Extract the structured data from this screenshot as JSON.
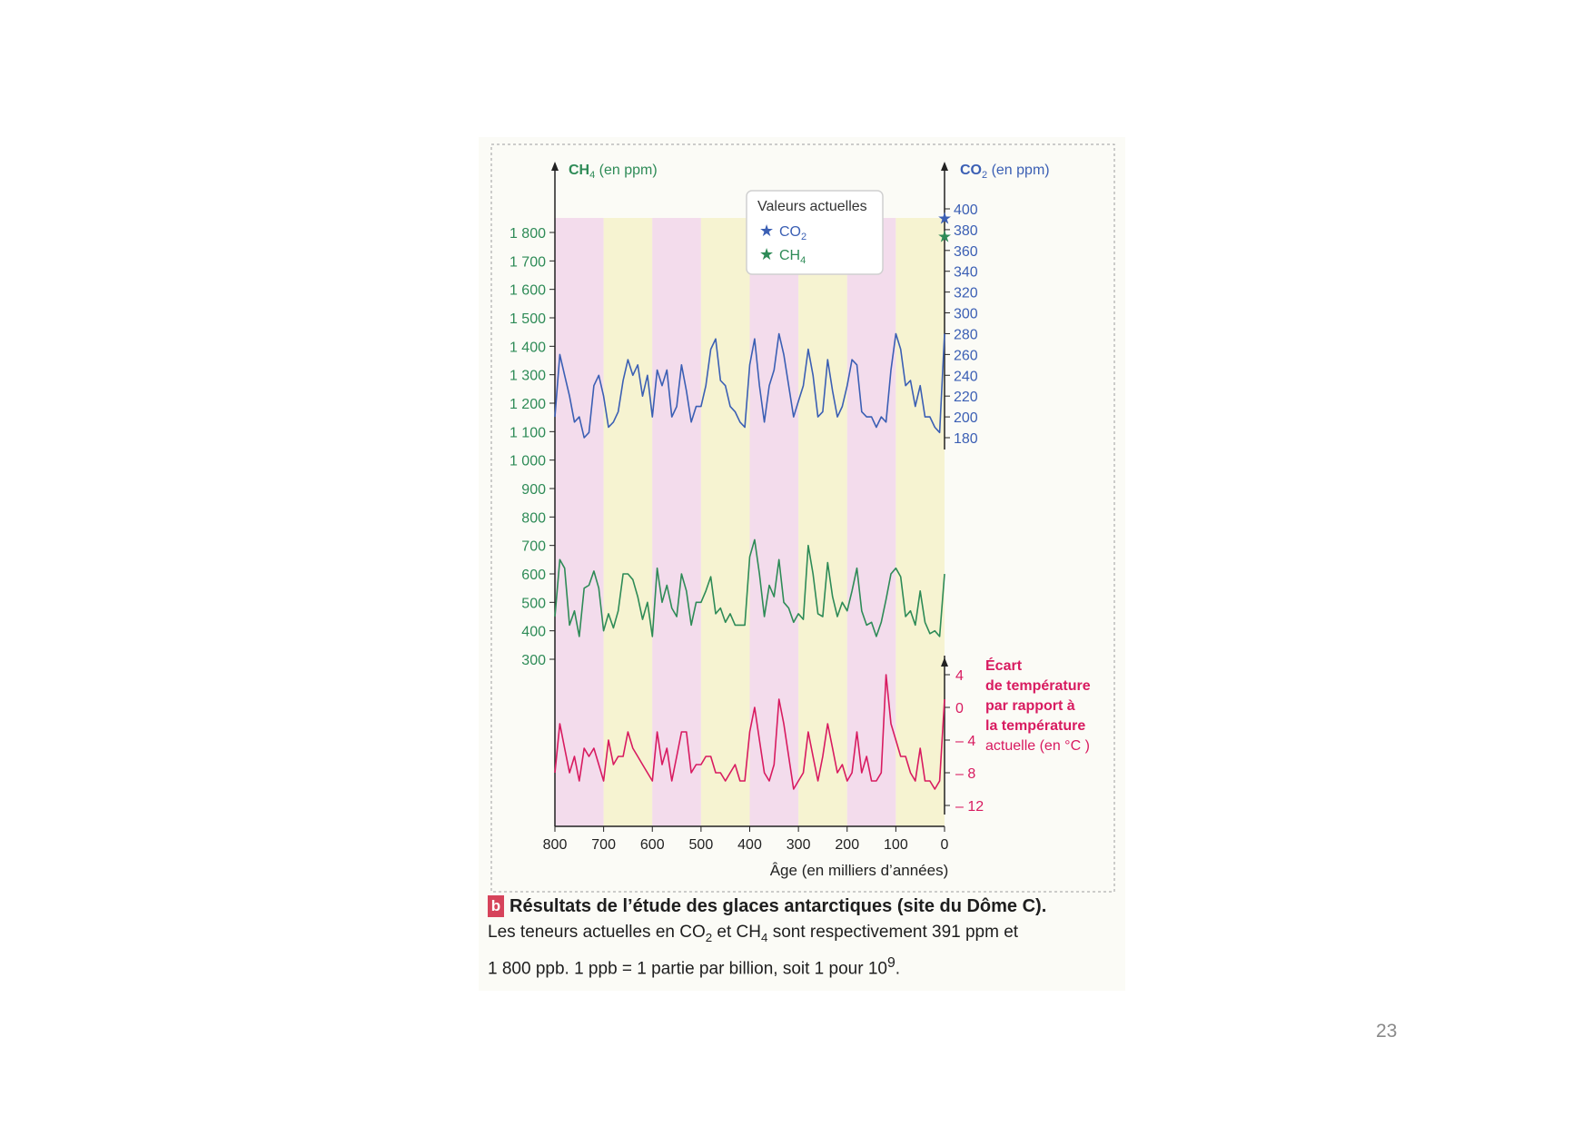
{
  "slide": {
    "page_number": "23"
  },
  "caption": {
    "badge": "b",
    "title": "Résultats de l’étude des glaces antarctiques (site du Dôme C).",
    "line1_a": "Les teneurs actuelles en CO",
    "line1_sub1": "2",
    "line1_b": " et CH",
    "line1_sub2": "4",
    "line1_c": " sont respectivement 391 ppm et",
    "line2_a": "1 800 ppb. 1 ppb = 1 partie par billion, soit 1 pour 10",
    "line2_sup": "9",
    "line2_b": "."
  },
  "colors": {
    "co2": "#3b5fb4",
    "ch4": "#2e8b57",
    "temperature": "#d81b60",
    "ch4_axis_text": "#2e8b57",
    "co2_axis_text": "#3b5fb4",
    "temp_axis_text": "#d81b60",
    "band_pink": "#f1d4ea",
    "band_yellow": "#f5f1c8"
  },
  "chart_data": {
    "type": "line",
    "x_axis": {
      "label": "Âge (en milliers d’années)",
      "ticks": [
        800,
        700,
        600,
        500,
        400,
        300,
        200,
        100,
        0
      ],
      "range": [
        800,
        0
      ]
    },
    "y_left_ch4": {
      "label_main": "CH",
      "label_sub": "4",
      "label_unit": " (en ppm)",
      "ticks": [
        "1 800",
        "1 700",
        "1 600",
        "1 500",
        "1 400",
        "1 300",
        "1 200",
        "1 100",
        "1 000",
        "900",
        "800",
        "700",
        "600",
        "500",
        "400",
        "300"
      ],
      "range": [
        300,
        1800
      ]
    },
    "y_right_co2": {
      "label_main": "CO",
      "label_sub": "2",
      "label_unit": " (en ppm)",
      "ticks": [
        400,
        380,
        360,
        340,
        320,
        300,
        280,
        260,
        240,
        220,
        200,
        180
      ],
      "range": [
        180,
        400
      ]
    },
    "y_right_temperature": {
      "label_lines": [
        "Écart",
        "de température",
        "par rapport à",
        "la température",
        "actuelle (en °C )"
      ],
      "ticks": [
        "4",
        "0",
        "– 4",
        "– 8",
        "– 12"
      ],
      "range": [
        -12,
        4
      ]
    },
    "legend": {
      "title": "Valeurs actuelles",
      "items": [
        {
          "main": "CO",
          "sub": "2",
          "marker": "★"
        },
        {
          "main": "CH",
          "sub": "4",
          "marker": "★"
        }
      ],
      "position": "top-right",
      "current_co2": 391,
      "current_ch4": 1800
    },
    "bands": [
      {
        "from": 800,
        "to": 700,
        "kind": "pink"
      },
      {
        "from": 700,
        "to": 600,
        "kind": "yellow"
      },
      {
        "from": 600,
        "to": 500,
        "kind": "pink"
      },
      {
        "from": 500,
        "to": 400,
        "kind": "yellow"
      },
      {
        "from": 400,
        "to": 300,
        "kind": "pink"
      },
      {
        "from": 300,
        "to": 200,
        "kind": "yellow"
      },
      {
        "from": 200,
        "to": 100,
        "kind": "pink"
      },
      {
        "from": 100,
        "to": 0,
        "kind": "yellow"
      }
    ],
    "series": [
      {
        "key": "co2",
        "x": [
          800,
          790,
          780,
          770,
          760,
          750,
          740,
          730,
          720,
          710,
          700,
          690,
          680,
          670,
          660,
          650,
          640,
          630,
          620,
          610,
          600,
          590,
          580,
          570,
          560,
          550,
          540,
          530,
          520,
          510,
          500,
          490,
          480,
          470,
          460,
          450,
          440,
          430,
          420,
          410,
          400,
          390,
          380,
          370,
          360,
          350,
          340,
          330,
          320,
          310,
          300,
          290,
          280,
          270,
          260,
          250,
          240,
          230,
          220,
          210,
          200,
          190,
          180,
          170,
          160,
          150,
          140,
          130,
          120,
          110,
          100,
          90,
          80,
          70,
          60,
          50,
          40,
          30,
          20,
          10,
          0
        ],
        "y": [
          200,
          260,
          240,
          220,
          195,
          200,
          180,
          185,
          230,
          240,
          220,
          190,
          195,
          205,
          235,
          255,
          240,
          250,
          220,
          240,
          200,
          245,
          230,
          245,
          200,
          210,
          250,
          225,
          195,
          210,
          210,
          230,
          265,
          275,
          235,
          230,
          210,
          205,
          195,
          190,
          250,
          275,
          230,
          195,
          230,
          245,
          280,
          260,
          230,
          200,
          215,
          230,
          265,
          240,
          200,
          205,
          255,
          225,
          200,
          210,
          230,
          255,
          250,
          205,
          200,
          200,
          190,
          200,
          195,
          245,
          280,
          265,
          230,
          235,
          210,
          230,
          200,
          200,
          190,
          185,
          280
        ]
      },
      {
        "key": "ch4",
        "x": [
          800,
          790,
          780,
          770,
          760,
          750,
          740,
          730,
          720,
          710,
          700,
          690,
          680,
          670,
          660,
          650,
          640,
          630,
          620,
          610,
          600,
          590,
          580,
          570,
          560,
          550,
          540,
          530,
          520,
          510,
          500,
          490,
          480,
          470,
          460,
          450,
          440,
          430,
          420,
          410,
          400,
          390,
          380,
          370,
          360,
          350,
          340,
          330,
          320,
          310,
          300,
          290,
          280,
          270,
          260,
          250,
          240,
          230,
          220,
          210,
          200,
          190,
          180,
          170,
          160,
          150,
          140,
          130,
          120,
          110,
          100,
          90,
          80,
          70,
          60,
          50,
          40,
          30,
          20,
          10,
          0
        ],
        "y": [
          450,
          650,
          620,
          420,
          470,
          380,
          550,
          560,
          610,
          550,
          400,
          460,
          410,
          470,
          600,
          600,
          580,
          520,
          440,
          500,
          380,
          620,
          500,
          560,
          480,
          450,
          600,
          540,
          420,
          500,
          500,
          540,
          590,
          460,
          480,
          430,
          460,
          420,
          420,
          420,
          660,
          720,
          600,
          450,
          560,
          520,
          650,
          500,
          480,
          430,
          460,
          440,
          700,
          600,
          460,
          450,
          640,
          520,
          450,
          500,
          470,
          540,
          620,
          470,
          420,
          430,
          380,
          430,
          510,
          600,
          620,
          590,
          450,
          470,
          420,
          540,
          430,
          390,
          400,
          380,
          600
        ]
      },
      {
        "key": "temperature",
        "x": [
          800,
          790,
          780,
          770,
          760,
          750,
          740,
          730,
          720,
          710,
          700,
          690,
          680,
          670,
          660,
          650,
          640,
          630,
          620,
          610,
          600,
          590,
          580,
          570,
          560,
          550,
          540,
          530,
          520,
          510,
          500,
          490,
          480,
          470,
          460,
          450,
          440,
          430,
          420,
          410,
          400,
          390,
          380,
          370,
          360,
          350,
          340,
          330,
          320,
          310,
          300,
          290,
          280,
          270,
          260,
          250,
          240,
          230,
          220,
          210,
          200,
          190,
          180,
          170,
          160,
          150,
          140,
          130,
          120,
          110,
          100,
          90,
          80,
          70,
          60,
          50,
          40,
          30,
          20,
          10,
          0
        ],
        "y": [
          -8,
          -2,
          -5,
          -8,
          -6,
          -9,
          -5,
          -6,
          -5,
          -7,
          -9,
          -4,
          -7,
          -6,
          -6,
          -3,
          -5,
          -6,
          -7,
          -8,
          -9,
          -3,
          -7,
          -5,
          -9,
          -6,
          -3,
          -3,
          -8,
          -7,
          -7,
          -6,
          -6,
          -8,
          -8,
          -9,
          -8,
          -7,
          -9,
          -9,
          -3,
          0,
          -4,
          -8,
          -9,
          -7,
          1,
          -2,
          -6,
          -10,
          -9,
          -8,
          -3,
          -6,
          -9,
          -6,
          -2,
          -5,
          -8,
          -7,
          -9,
          -8,
          -3,
          -8,
          -6,
          -9,
          -9,
          -8,
          4,
          -2,
          -4,
          -6,
          -6,
          -8,
          -9,
          -5,
          -9,
          -9,
          -10,
          -9,
          1
        ]
      }
    ]
  }
}
